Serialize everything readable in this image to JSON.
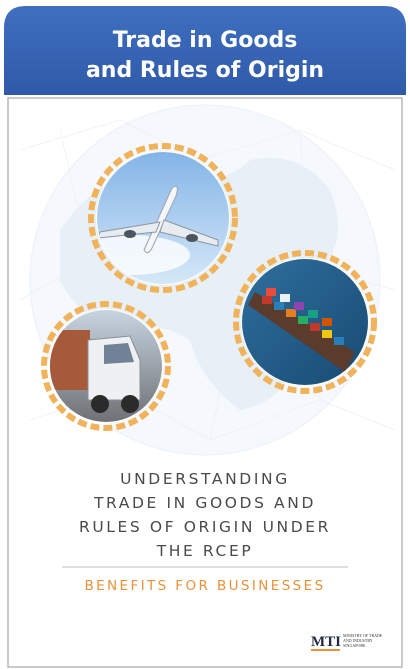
{
  "header": {
    "title_lines": [
      "Trade in Goods",
      "and Rules of Origin"
    ]
  },
  "cover": {
    "heading_lines": [
      "UNDERSTANDING",
      "TRADE IN GOODS AND",
      "RULES OF ORIGIN UNDER",
      "THE RCEP"
    ],
    "subheading": "BENEFITS FOR BUSINESSES"
  },
  "logo": {
    "abbr": "MTI",
    "name_lines": [
      "MINISTRY OF TRADE",
      "AND INDUSTRY",
      "SINGAPORE"
    ]
  }
}
